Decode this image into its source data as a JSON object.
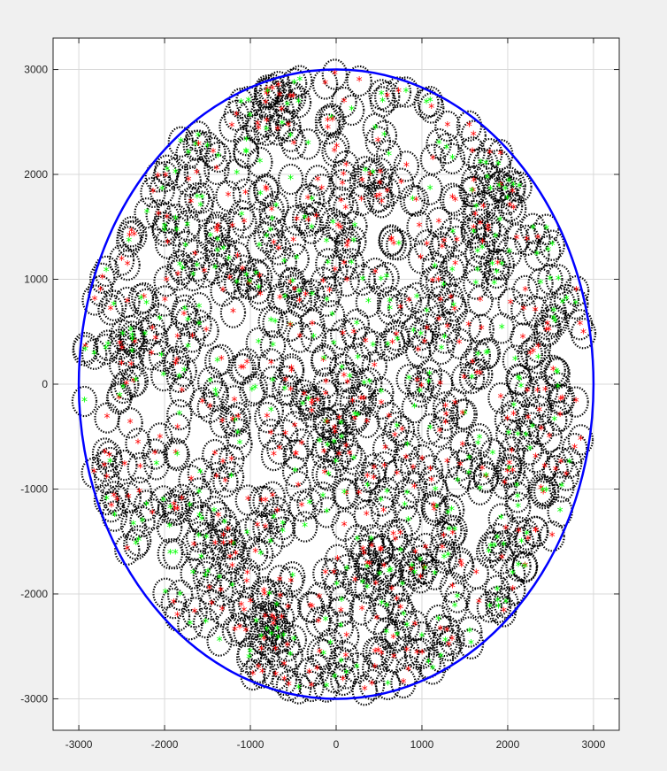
{
  "chart_data": {
    "type": "scatter",
    "title": "",
    "xlabel": "",
    "ylabel": "",
    "xlim": [
      -3300,
      3300
    ],
    "ylim": [
      -3300,
      3300
    ],
    "xticks": [
      -3000,
      -2000,
      -1000,
      0,
      1000,
      2000,
      3000
    ],
    "yticks": [
      -3000,
      -2000,
      -1000,
      0,
      1000,
      2000,
      3000
    ],
    "xtick_labels": [
      "-3000",
      "-2000",
      "-1000",
      "0",
      "1000",
      "2000",
      "3000"
    ],
    "ytick_labels": [
      "-3000",
      "-2000",
      "-1000",
      "0",
      "1000",
      "2000",
      "3000"
    ],
    "grid": true,
    "boundary_circle": {
      "center": [
        0,
        0
      ],
      "radius": 3000
    },
    "node_radius": 140,
    "marker_count": 900,
    "colors": {
      "boundary": "#0000ff",
      "node_ring": "#000000",
      "center_marker": "#ff0000",
      "edge_marker": "#00ff00",
      "grid": "#d9d9d9",
      "axes_background": "#ffffff",
      "figure_background": "#f0f0f0"
    }
  }
}
